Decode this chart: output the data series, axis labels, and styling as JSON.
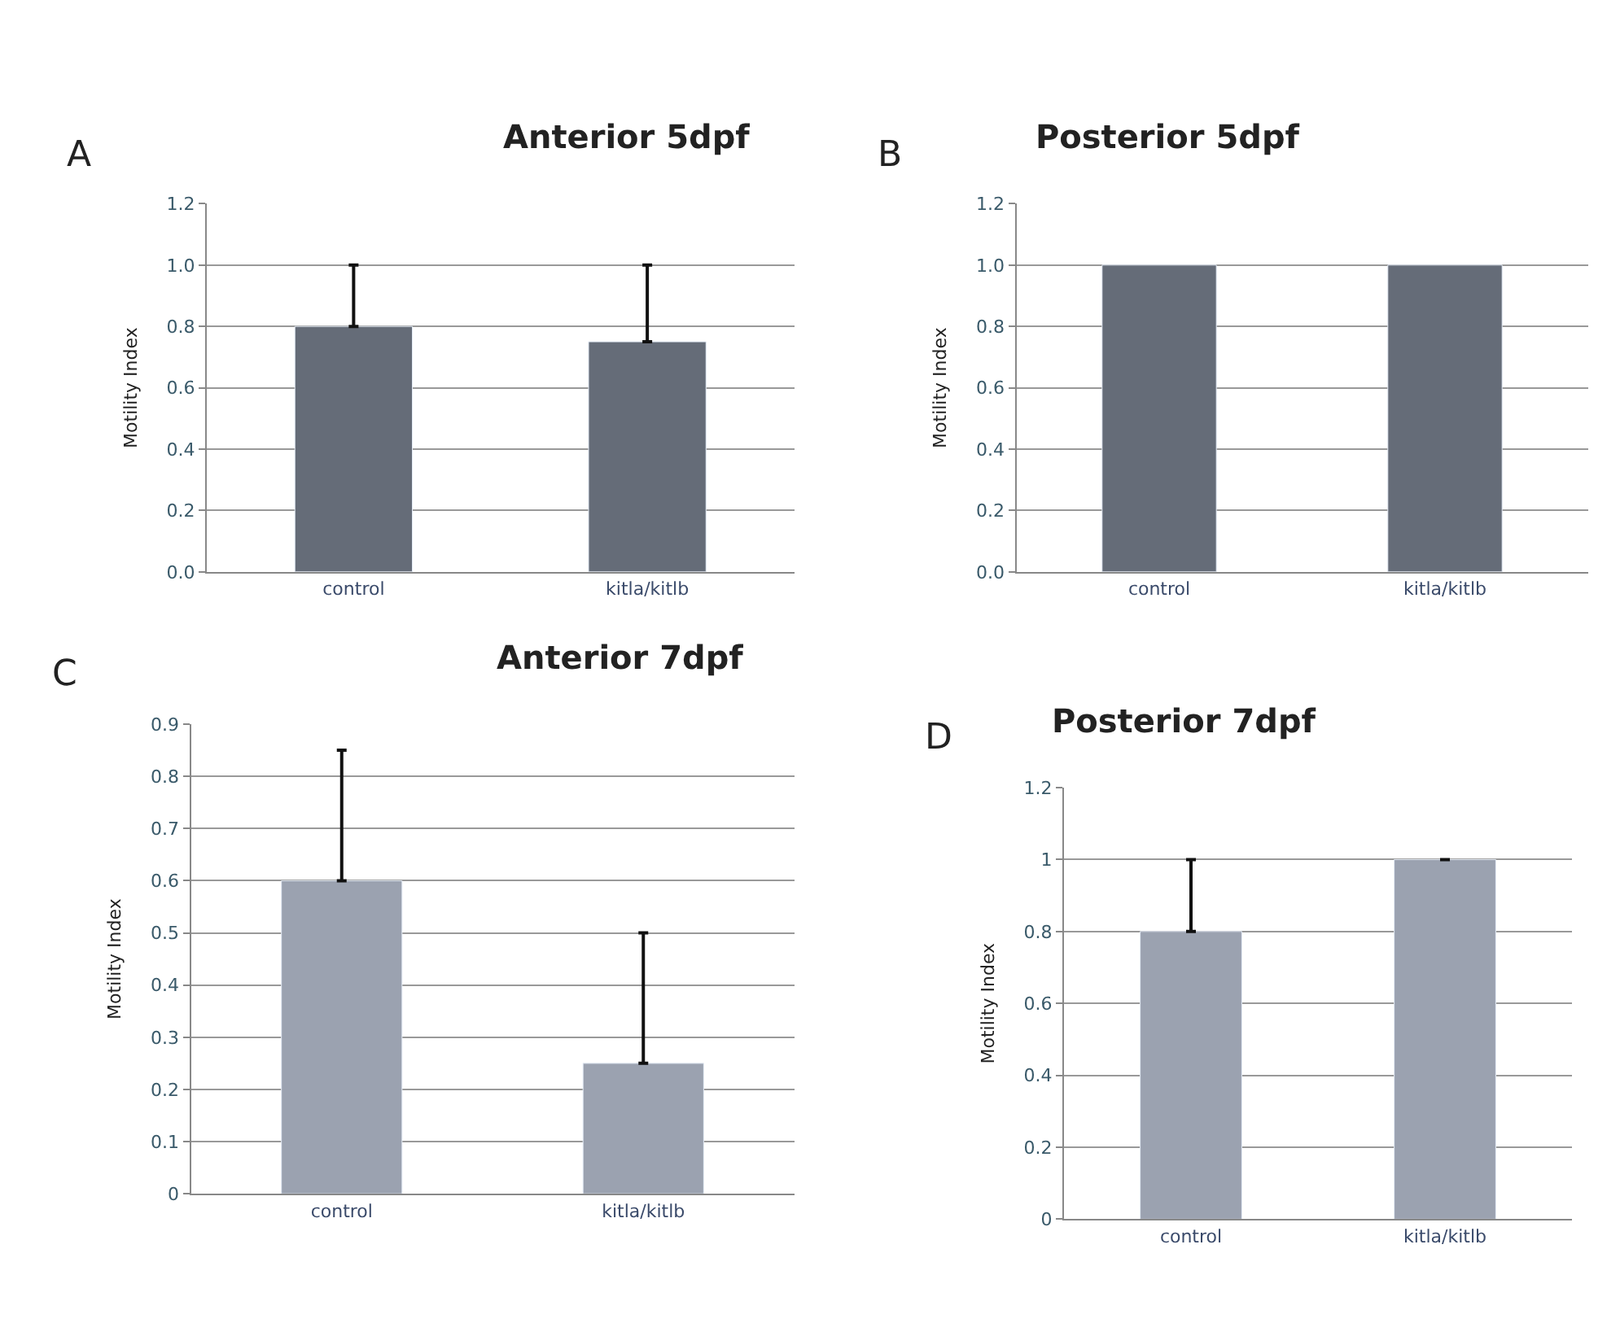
{
  "chart_data": [
    {
      "type": "bar",
      "title": "Anterior 5dpf",
      "ylabel": "Motility Index",
      "annotations": [
        "A"
      ],
      "categories": [
        "control",
        "kitla/kitlb"
      ],
      "values": [
        0.8,
        0.75
      ],
      "errors": [
        [
          0.8,
          1.0
        ],
        [
          0.75,
          1.0
        ]
      ],
      "color": "#656c78",
      "ylim": [
        0,
        1.2
      ],
      "yticks": [
        {
          "value": 0,
          "label": "0.0"
        },
        {
          "value": 0.2,
          "label": "0.2"
        },
        {
          "value": 0.4,
          "label": "0.4"
        },
        {
          "value": 0.6,
          "label": "0.6"
        },
        {
          "value": 0.8,
          "label": "0.8"
        },
        {
          "value": 1.0,
          "label": "1.0"
        },
        {
          "value": 1.2,
          "label": "1.2"
        }
      ],
      "grid": "y"
    },
    {
      "type": "bar",
      "title": "Posterior 5dpf",
      "ylabel": "Motility Index",
      "annotations": [
        "B"
      ],
      "categories": [
        "control",
        "kitla/kitlb"
      ],
      "values": [
        1.0,
        1.0
      ],
      "color": "#656c78",
      "ylim": [
        0,
        1.2
      ],
      "yticks": [
        {
          "value": 0,
          "label": "0.0"
        },
        {
          "value": 0.2,
          "label": "0.2"
        },
        {
          "value": 0.4,
          "label": "0.4"
        },
        {
          "value": 0.6,
          "label": "0.6"
        },
        {
          "value": 0.8,
          "label": "0.8"
        },
        {
          "value": 1.0,
          "label": "1.0"
        },
        {
          "value": 1.2,
          "label": "1.2"
        }
      ],
      "grid": "y"
    },
    {
      "type": "bar",
      "title": "Anterior 7dpf",
      "ylabel": "Motility Index",
      "annotations": [
        "C"
      ],
      "categories": [
        "control",
        "kitla/kitlb"
      ],
      "values": [
        0.6,
        0.25
      ],
      "errors": [
        [
          0.6,
          0.85
        ],
        [
          0.25,
          0.5
        ]
      ],
      "color": "#9ba2b0",
      "ylim": [
        0,
        0.9
      ],
      "yticks": [
        0,
        0.1,
        0.2,
        0.3,
        0.4,
        0.5,
        0.6,
        0.7,
        0.8,
        0.9
      ],
      "grid": "y"
    },
    {
      "type": "bar",
      "title": "Posterior 7dpf",
      "ylabel": "Motility Index",
      "annotations": [
        "D"
      ],
      "categories": [
        "control",
        "kitla/kitlb"
      ],
      "values": [
        0.8,
        1.0
      ],
      "errors": [
        [
          0.8,
          1.0
        ],
        null
      ],
      "color": "#9ba2b0",
      "ylim": [
        0,
        1.2
      ],
      "yticks": [
        0,
        0.2,
        0.4,
        0.6,
        0.8,
        1,
        1.2
      ],
      "grid": "y"
    }
  ]
}
